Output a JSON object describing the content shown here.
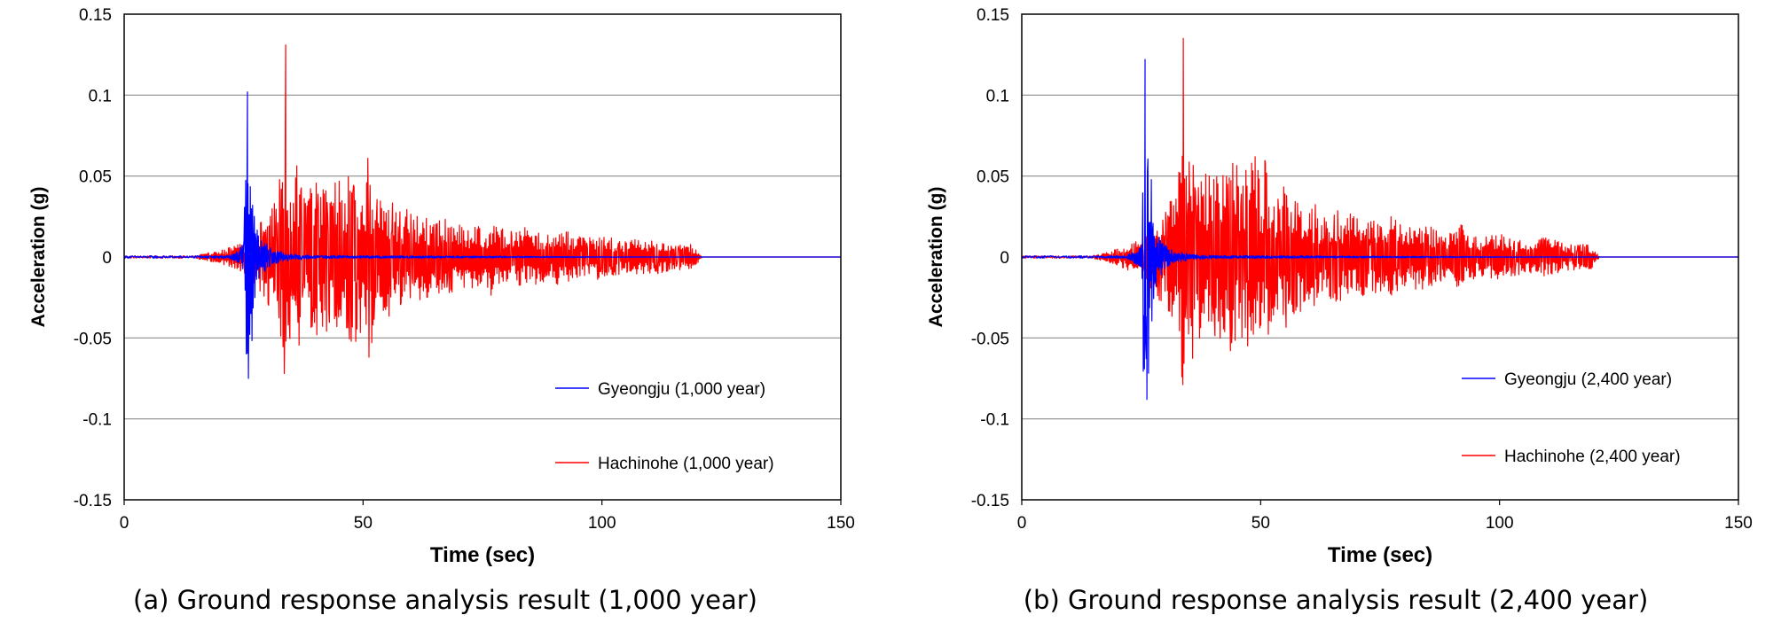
{
  "chart_data": [
    {
      "type": "line",
      "title": "",
      "xlabel": "Time (sec)",
      "ylabel": "Acceleration (g)",
      "xlim": [
        0,
        150
      ],
      "ylim": [
        -0.15,
        0.15
      ],
      "x_ticks": [
        "0",
        "50",
        "100",
        "150"
      ],
      "y_ticks": [
        "0.15",
        "0.1",
        "0.05",
        "0",
        "-0.05",
        "-0.1",
        "-0.15"
      ],
      "grid": "horizontal",
      "legend_position": "bottom-right",
      "caption": "(a) Ground response analysis result (1,000 year)",
      "series": [
        {
          "name": "Hachinohe (1,000 year)",
          "color": "#ff0000",
          "start": 15,
          "end": 121,
          "peak_t": 33.8,
          "peak": 0.131,
          "trough_t": 33.5,
          "trough": -0.072,
          "points": [
            [
              0,
              0
            ],
            [
              15,
              0.001
            ],
            [
              20,
              0.004
            ],
            [
              22,
              -0.006
            ],
            [
              24,
              0.008
            ],
            [
              26,
              -0.012
            ],
            [
              28,
              0.02
            ],
            [
              30,
              -0.03
            ],
            [
              32,
              0.035
            ],
            [
              33.5,
              -0.072
            ],
            [
              33.8,
              0.131
            ],
            [
              34.2,
              -0.07
            ],
            [
              35,
              0.05
            ],
            [
              36,
              -0.065
            ],
            [
              38,
              0.04
            ],
            [
              40,
              -0.05
            ],
            [
              41,
              0.045
            ],
            [
              43,
              -0.05
            ],
            [
              44.5,
              0.052
            ],
            [
              46,
              -0.045
            ],
            [
              47,
              0.05
            ],
            [
              48,
              -0.055
            ],
            [
              49,
              0.052
            ],
            [
              50,
              -0.04
            ],
            [
              51,
              0.066
            ],
            [
              53,
              -0.035
            ],
            [
              55,
              0.04
            ],
            [
              57,
              -0.03
            ],
            [
              60,
              0.03
            ],
            [
              63,
              -0.025
            ],
            [
              66,
              0.025
            ],
            [
              70,
              -0.02
            ],
            [
              73,
              0.02
            ],
            [
              76,
              -0.018
            ],
            [
              77,
              0.028
            ],
            [
              80,
              -0.015
            ],
            [
              84,
              0.02
            ],
            [
              88,
              -0.015
            ],
            [
              92,
              0.018
            ],
            [
              96,
              -0.012
            ],
            [
              100,
              0.015
            ],
            [
              105,
              -0.01
            ],
            [
              110,
              0.012
            ],
            [
              115,
              -0.008
            ],
            [
              119,
              0.008
            ],
            [
              121,
              0
            ],
            [
              150,
              0
            ]
          ]
        },
        {
          "name": "Gyeongju (1,000 year)",
          "color": "#0000ff",
          "start": 16,
          "end": 120,
          "peak_t": 25.8,
          "peak": 0.102,
          "trough_t": 26,
          "trough": -0.075,
          "points": [
            [
              0,
              0
            ],
            [
              22,
              0.001
            ],
            [
              24,
              0.004
            ],
            [
              25,
              -0.01
            ],
            [
              25.8,
              0.102
            ],
            [
              26,
              -0.075
            ],
            [
              26.2,
              0.06
            ],
            [
              26.5,
              -0.045
            ],
            [
              26.8,
              0.058
            ],
            [
              27.2,
              -0.035
            ],
            [
              27.6,
              0.02
            ],
            [
              28,
              -0.015
            ],
            [
              29,
              0.01
            ],
            [
              30,
              -0.008
            ],
            [
              32,
              0.004
            ],
            [
              35,
              -0.002
            ],
            [
              40,
              0.001
            ],
            [
              120,
              0
            ],
            [
              150,
              0
            ]
          ]
        }
      ]
    },
    {
      "type": "line",
      "title": "",
      "xlabel": "Time (sec)",
      "ylabel": "Acceleration (g)",
      "xlim": [
        0,
        150
      ],
      "ylim": [
        -0.15,
        0.15
      ],
      "x_ticks": [
        "0",
        "50",
        "100",
        "150"
      ],
      "y_ticks": [
        "0.15",
        "0.1",
        "0.05",
        "0",
        "-0.05",
        "-0.1",
        "-0.15"
      ],
      "grid": "horizontal",
      "legend_position": "bottom-right",
      "caption": "(b) Ground response analysis result (2,400 year)",
      "series": [
        {
          "name": "Hachinohe (2,400 year)",
          "color": "#ff0000",
          "start": 15,
          "end": 121,
          "peak_t": 33.8,
          "peak": 0.135,
          "trough_t": 33.5,
          "trough": -0.074,
          "points": [
            [
              0,
              0
            ],
            [
              15,
              0.001
            ],
            [
              20,
              0.005
            ],
            [
              22,
              -0.008
            ],
            [
              24,
              0.01
            ],
            [
              26,
              -0.015
            ],
            [
              28,
              0.025
            ],
            [
              30,
              -0.035
            ],
            [
              32,
              0.04
            ],
            [
              33.5,
              -0.074
            ],
            [
              33.8,
              0.135
            ],
            [
              34.2,
              -0.07
            ],
            [
              35,
              0.06
            ],
            [
              36,
              -0.065
            ],
            [
              38,
              0.05
            ],
            [
              40,
              -0.055
            ],
            [
              41,
              0.05
            ],
            [
              43,
              -0.06
            ],
            [
              44.5,
              0.06
            ],
            [
              46,
              -0.05
            ],
            [
              47,
              0.055
            ],
            [
              48,
              -0.06
            ],
            [
              49,
              0.065
            ],
            [
              50,
              -0.045
            ],
            [
              51,
              0.072
            ],
            [
              53,
              -0.04
            ],
            [
              55,
              0.045
            ],
            [
              57,
              -0.035
            ],
            [
              60,
              0.035
            ],
            [
              63,
              -0.03
            ],
            [
              66,
              0.03
            ],
            [
              70,
              -0.025
            ],
            [
              73,
              0.025
            ],
            [
              76,
              -0.02
            ],
            [
              77,
              0.028
            ],
            [
              80,
              -0.018
            ],
            [
              84,
              0.022
            ],
            [
              88,
              -0.015
            ],
            [
              92,
              0.02
            ],
            [
              96,
              -0.012
            ],
            [
              100,
              0.015
            ],
            [
              105,
              -0.01
            ],
            [
              110,
              0.012
            ],
            [
              115,
              -0.008
            ],
            [
              119,
              0.008
            ],
            [
              121,
              0
            ],
            [
              150,
              0
            ]
          ]
        },
        {
          "name": "Gyeongju (2,400 year)",
          "color": "#0000ff",
          "start": 16,
          "end": 120,
          "peak_t": 25.8,
          "peak": 0.122,
          "trough_t": 26.2,
          "trough": -0.088,
          "points": [
            [
              0,
              0
            ],
            [
              22,
              0.001
            ],
            [
              24,
              0.005
            ],
            [
              25,
              -0.012
            ],
            [
              25.8,
              0.122
            ],
            [
              26.2,
              -0.088
            ],
            [
              26.5,
              0.077
            ],
            [
              26.8,
              -0.055
            ],
            [
              27.1,
              0.058
            ],
            [
              27.5,
              -0.04
            ],
            [
              28,
              0.02
            ],
            [
              29,
              -0.012
            ],
            [
              30,
              0.008
            ],
            [
              32,
              -0.004
            ],
            [
              35,
              0.002
            ],
            [
              40,
              0.001
            ],
            [
              120,
              0
            ],
            [
              150,
              0
            ]
          ]
        }
      ]
    }
  ]
}
